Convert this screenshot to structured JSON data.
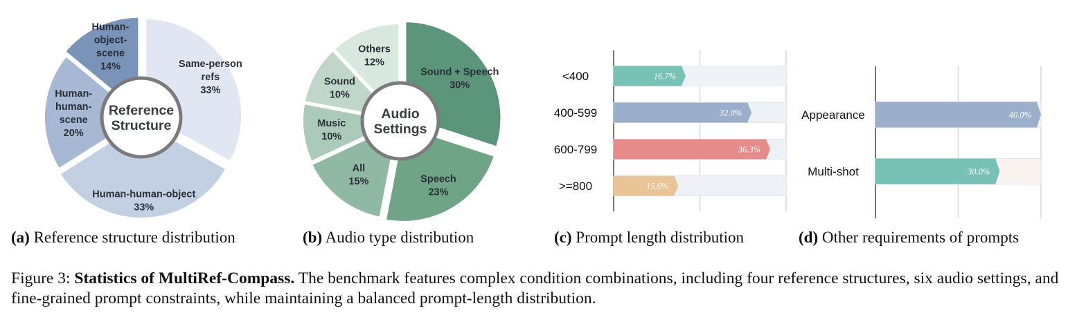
{
  "chart_data": [
    {
      "type": "pie",
      "donut": true,
      "center_label": [
        "Reference",
        "Structure"
      ],
      "caption": {
        "letter": "(a)",
        "text": "Reference structure distribution"
      },
      "slices": [
        {
          "label": [
            "Same-person",
            "refs"
          ],
          "value": 33,
          "pct": "33%",
          "color": "#e1e7f2"
        },
        {
          "label": [
            "Human-human-object"
          ],
          "value": 33,
          "pct": "33%",
          "color": "#c3d0e4"
        },
        {
          "label": [
            "Human-",
            "human-",
            "scene"
          ],
          "value": 20,
          "pct": "20%",
          "color": "#a6b8d4"
        },
        {
          "label": [
            "Human-",
            "object-",
            "scene"
          ],
          "value": 14,
          "pct": "14%",
          "color": "#7a93b8"
        }
      ]
    },
    {
      "type": "pie",
      "donut": true,
      "center_label": [
        "Audio",
        "Settings"
      ],
      "caption": {
        "letter": "(b)",
        "text": "Audio type distribution"
      },
      "slices": [
        {
          "label": [
            "Sound + Speech"
          ],
          "value": 30,
          "pct": "30%",
          "color": "#5b957a"
        },
        {
          "label": [
            "Speech"
          ],
          "value": 23,
          "pct": "23%",
          "color": "#6fa487"
        },
        {
          "label": [
            "All"
          ],
          "value": 15,
          "pct": "15%",
          "color": "#8fb9a2"
        },
        {
          "label": [
            "Music"
          ],
          "value": 10,
          "pct": "10%",
          "color": "#abcab9"
        },
        {
          "label": [
            "Sound"
          ],
          "value": 10,
          "pct": "10%",
          "color": "#bfd6c8"
        },
        {
          "label": [
            "Others"
          ],
          "value": 12,
          "pct": "12%",
          "color": "#d9e8df"
        }
      ]
    },
    {
      "type": "bar",
      "orientation": "horizontal",
      "caption": {
        "letter": "(c)",
        "text": "Prompt length distribution"
      },
      "categories": [
        "<400",
        "400-599",
        "600-799",
        ">=800"
      ],
      "values": [
        16.7,
        32.0,
        36.3,
        15.0
      ],
      "value_labels": [
        "16.7%",
        "32.0%",
        "36.3%",
        "15.0%"
      ],
      "colors": [
        "#78c2b5",
        "#9bafcb",
        "#e58b8a",
        "#e8c496"
      ],
      "track_color": "#eef2f7",
      "xlim": [
        0,
        40
      ],
      "grid": true
    },
    {
      "type": "bar",
      "orientation": "horizontal",
      "caption": {
        "letter": "(d)",
        "text": "Other requirements of prompts"
      },
      "categories": [
        "Appearance",
        "Multi-shot"
      ],
      "values": [
        40.0,
        30.0
      ],
      "value_labels": [
        "40.0%",
        "30.0%"
      ],
      "colors": [
        "#9bafcb",
        "#78c2b5"
      ],
      "track_color": "#f8f3ef",
      "xlim": [
        0,
        40
      ],
      "grid": true
    }
  ],
  "figure_caption": {
    "prefix": "Figure 3: ",
    "bold": "Statistics of MultiRef-Compass.",
    "text": " The benchmark features complex condition combinations, including four reference structures, six audio settings, and fine-grained prompt constraints, while maintaining a balanced prompt-length distribution."
  }
}
